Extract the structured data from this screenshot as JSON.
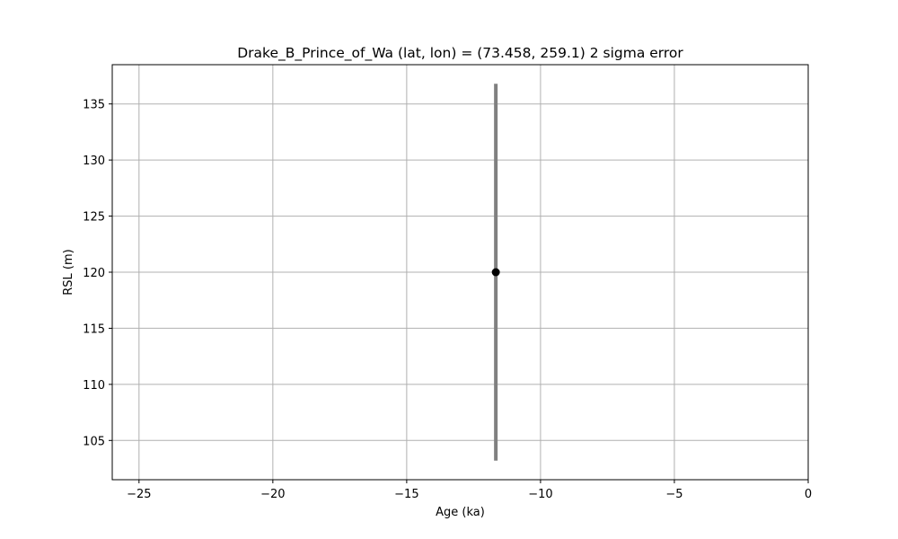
{
  "chart_data": {
    "type": "scatter",
    "title": "Drake_B_Prince_of_Wa (lat, lon) = (73.458, 259.1)  2 sigma error",
    "xlabel": "Age (ka)",
    "ylabel": "RSL (m)",
    "xlim": [
      -26,
      0
    ],
    "ylim": [
      101.5,
      138.5
    ],
    "xticks": [
      -25,
      -20,
      -15,
      -10,
      -5,
      0
    ],
    "xtick_labels": [
      "−25",
      "−20",
      "−15",
      "−10",
      "−5",
      "0"
    ],
    "yticks": [
      105,
      110,
      115,
      120,
      125,
      130,
      135
    ],
    "ytick_labels": [
      "105",
      "110",
      "115",
      "120",
      "125",
      "130",
      "135"
    ],
    "grid": true,
    "series": [
      {
        "points": [
          {
            "x": -11.67,
            "y": 120.0,
            "y_err_low": 103.2,
            "y_err_high": 136.8
          }
        ],
        "marker_color": "#000000",
        "errorbar_color": "#808080"
      }
    ]
  }
}
